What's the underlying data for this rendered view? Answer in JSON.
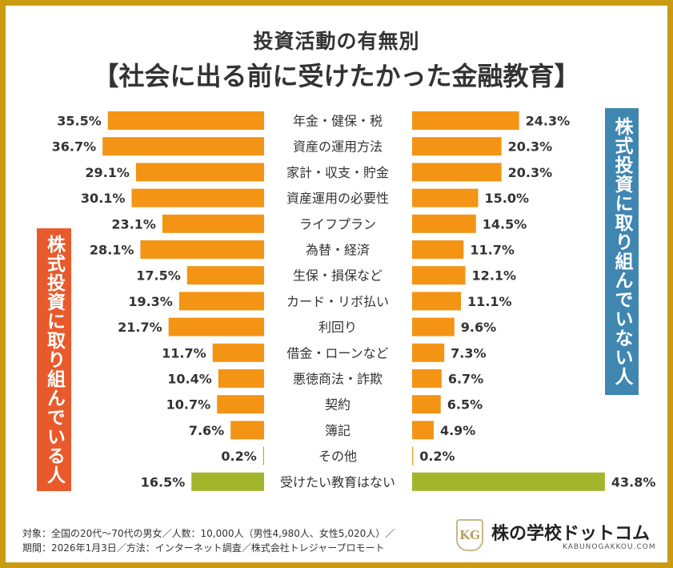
{
  "title": "投資活動の有無別",
  "subtitle": "【社会に出る前に受けたかった金融教育】",
  "left_label": "株式投資に取り組んでいる人",
  "right_label": "株式投資に取り組んでいない人",
  "footer": {
    "line1": "対象：全国の20代〜70代の男女／人数：10,000人（男性4,980人、女性5,020人）／",
    "line2": "期間：2026年1月3日／方法：インターネット調査／株式会社トレジャープロモート"
  },
  "logo": {
    "mark": "KG",
    "name": "株の学校ドットコム",
    "url": "KABUNOGAKKOU.COM"
  },
  "colors": {
    "bar": "#f39415",
    "bar_last": "#a3b52a",
    "frame": "#c99a12",
    "left_label_bg": "#e85a2b",
    "right_label_bg": "#3f86b0",
    "text": "#333333"
  },
  "chart_data": {
    "type": "bar",
    "orientation": "horizontal-butterfly",
    "categories": [
      "年金・健保・税",
      "資産の運用方法",
      "家計・収支・貯金",
      "資産運用の必要性",
      "ライフプラン",
      "為替・経済",
      "生保・損保など",
      "カード・リボ払い",
      "利回り",
      "借金・ローンなど",
      "悪徳商法・詐欺",
      "契約",
      "簿記",
      "その他",
      "受けたい教育はない"
    ],
    "series": [
      {
        "name": "株式投資に取り組んでいる人",
        "side": "left",
        "values": [
          35.5,
          36.7,
          29.1,
          30.1,
          23.1,
          28.1,
          17.5,
          19.3,
          21.7,
          11.7,
          10.4,
          10.7,
          7.6,
          0.2,
          16.5
        ]
      },
      {
        "name": "株式投資に取り組んでいない人",
        "side": "right",
        "values": [
          24.3,
          20.3,
          20.3,
          15.0,
          14.5,
          11.7,
          12.1,
          11.1,
          9.6,
          7.3,
          6.7,
          6.5,
          4.9,
          0.2,
          43.8
        ]
      }
    ],
    "unit": "%"
  }
}
